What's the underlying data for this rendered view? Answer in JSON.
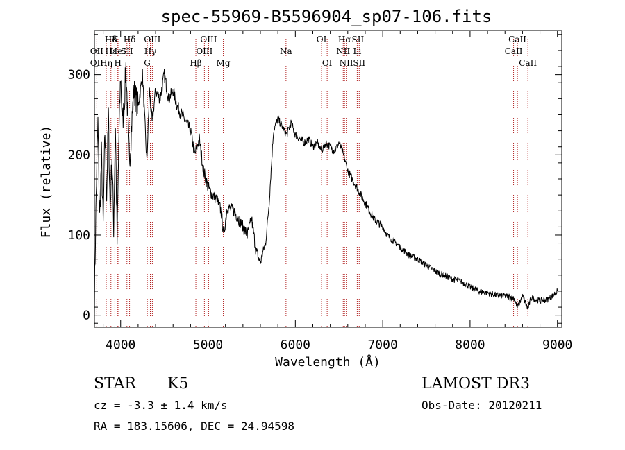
{
  "chart_data": {
    "type": "line",
    "title": "spec-55969-B5596904_sp07-106.fits",
    "xlabel": "Wavelength (Å)",
    "ylabel": "Flux (relative)",
    "xlim": [
      3700,
      9050
    ],
    "ylim": [
      -15,
      355
    ],
    "x_ticks": [
      4000,
      5000,
      6000,
      7000,
      8000,
      9000
    ],
    "x_tick_labels": [
      "4000",
      "5000",
      "6000",
      "7000",
      "8000",
      "9000"
    ],
    "y_ticks": [
      0,
      100,
      200,
      300
    ],
    "y_tick_labels": [
      "0",
      "100",
      "200",
      "300"
    ],
    "grid": false,
    "series": [
      {
        "name": "flux",
        "x": [
          3700,
          3720,
          3740,
          3760,
          3780,
          3800,
          3820,
          3840,
          3860,
          3880,
          3900,
          3920,
          3940,
          3960,
          3980,
          4000,
          4020,
          4040,
          4060,
          4080,
          4100,
          4150,
          4200,
          4250,
          4300,
          4330,
          4360,
          4400,
          4450,
          4500,
          4550,
          4600,
          4650,
          4700,
          4750,
          4800,
          4850,
          4900,
          4950,
          5000,
          5050,
          5100,
          5150,
          5180,
          5220,
          5300,
          5350,
          5400,
          5450,
          5500,
          5550,
          5600,
          5630,
          5660,
          5700,
          5750,
          5800,
          5850,
          5900,
          5950,
          6000,
          6050,
          6100,
          6150,
          6200,
          6250,
          6300,
          6350,
          6400,
          6450,
          6500,
          6550,
          6563,
          6600,
          6650,
          6700,
          6750,
          6800,
          6850,
          6900,
          6950,
          7000,
          7050,
          7100,
          7150,
          7200,
          7300,
          7400,
          7500,
          7600,
          7700,
          7800,
          7900,
          8000,
          8100,
          8200,
          8300,
          8400,
          8500,
          8542,
          8600,
          8662,
          8700,
          8800,
          8900,
          9000
        ],
        "values": [
          20,
          150,
          240,
          120,
          200,
          110,
          230,
          150,
          250,
          130,
          200,
          110,
          240,
          90,
          220,
          300,
          240,
          260,
          310,
          250,
          190,
          280,
          260,
          300,
          190,
          280,
          240,
          280,
          270,
          300,
          270,
          280,
          260,
          250,
          240,
          230,
          200,
          220,
          180,
          160,
          150,
          145,
          130,
          100,
          135,
          130,
          120,
          110,
          100,
          120,
          80,
          65,
          80,
          90,
          140,
          230,
          245,
          235,
          225,
          240,
          225,
          220,
          215,
          220,
          210,
          215,
          205,
          215,
          210,
          205,
          215,
          200,
          195,
          180,
          170,
          160,
          150,
          140,
          130,
          120,
          115,
          110,
          100,
          95,
          90,
          85,
          75,
          70,
          62,
          55,
          50,
          45,
          42,
          35,
          30,
          28,
          25,
          24,
          22,
          10,
          24,
          8,
          22,
          18,
          20,
          30
        ]
      }
    ],
    "annotations": [
      {
        "text": "Hδ",
        "wavelength": 3889,
        "row": 1
      },
      {
        "text": "OII",
        "wavelength": 3727,
        "row": 2
      },
      {
        "text": "OII",
        "wavelength": 3727,
        "row": 3
      },
      {
        "text": "Hε",
        "wavelength": 3890,
        "row": 2
      },
      {
        "text": "Hη",
        "wavelength": 3835,
        "row": 3
      },
      {
        "text": "K",
        "wavelength": 3934,
        "row": 1
      },
      {
        "text": "HeI",
        "wavelength": 3970,
        "row": 2
      },
      {
        "text": "H",
        "wavelength": 3968,
        "row": 3
      },
      {
        "text": "Hδ",
        "wavelength": 4102,
        "row": 1
      },
      {
        "text": "SII",
        "wavelength": 4072,
        "row": 2
      },
      {
        "text": "OIII",
        "wavelength": 4363,
        "row": 1
      },
      {
        "text": "Hγ",
        "wavelength": 4340,
        "row": 2
      },
      {
        "text": "G",
        "wavelength": 4305,
        "row": 3
      },
      {
        "text": "OIII",
        "wavelength": 5007,
        "row": 1
      },
      {
        "text": "OIII",
        "wavelength": 4959,
        "row": 2
      },
      {
        "text": "Hβ",
        "wavelength": 4861,
        "row": 3
      },
      {
        "text": "Mg",
        "wavelength": 5175,
        "row": 3
      },
      {
        "text": "Na",
        "wavelength": 5893,
        "row": 2
      },
      {
        "text": "OI",
        "wavelength": 6300,
        "row": 1
      },
      {
        "text": "OI",
        "wavelength": 6364,
        "row": 3
      },
      {
        "text": "Hα",
        "wavelength": 6563,
        "row": 1
      },
      {
        "text": "SII",
        "wavelength": 6716,
        "row": 1
      },
      {
        "text": "NII",
        "wavelength": 6548,
        "row": 2
      },
      {
        "text": "Li",
        "wavelength": 6708,
        "row": 2
      },
      {
        "text": "NII",
        "wavelength": 6583,
        "row": 3
      },
      {
        "text": "SII",
        "wavelength": 6731,
        "row": 3
      },
      {
        "text": "CaII",
        "wavelength": 8542,
        "row": 1
      },
      {
        "text": "CaII",
        "wavelength": 8498,
        "row": 2
      },
      {
        "text": "CaII",
        "wavelength": 8662,
        "row": 3
      }
    ],
    "line_markers": [
      3727,
      3835,
      3889,
      3934,
      3968,
      3970,
      4072,
      4102,
      4305,
      4340,
      4363,
      4861,
      4959,
      5007,
      5175,
      5893,
      6300,
      6364,
      6548,
      6563,
      6583,
      6708,
      6716,
      6731,
      8498,
      8542,
      8662
    ]
  },
  "info": {
    "class": "STAR",
    "subclass": "K5",
    "survey": "LAMOST DR3",
    "cz": "cz = -3.3 ± 1.4 km/s",
    "obs_date": "Obs-Date: 20120211",
    "coords": "RA = 183.15606, DEC =  24.94598"
  },
  "colors": {
    "spectrum": "#000000",
    "markers": "#b22222",
    "text": "#000000"
  }
}
